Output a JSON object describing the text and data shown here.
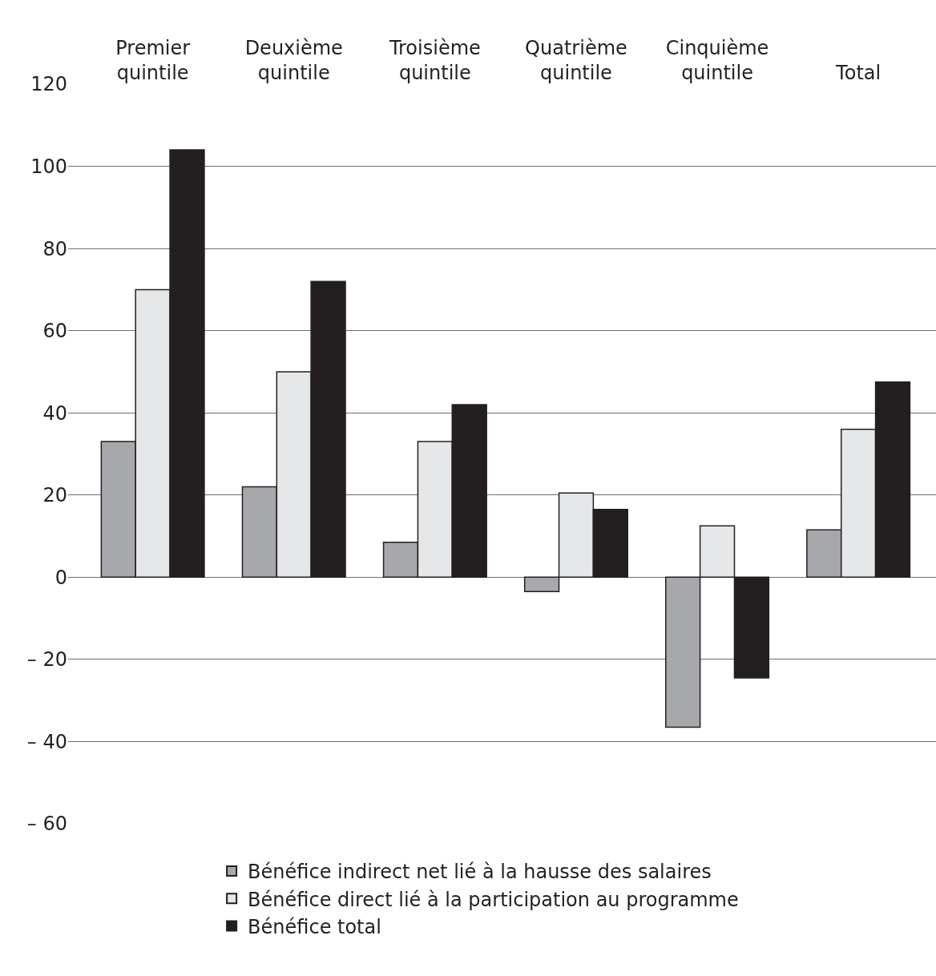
{
  "chart_data": {
    "type": "bar",
    "categories": [
      "Premier\nquintile",
      "Deuxième\nquintile",
      "Troisième\nquintile",
      "Quatrième\nquintile",
      "Cinquième\nquintile",
      "Total"
    ],
    "series": [
      {
        "name": "Bénéfice indirect net lié à la hausse des salaires",
        "color": "#a7a8ab",
        "values": [
          33,
          22,
          8.5,
          -3.5,
          -36.5,
          11.5
        ]
      },
      {
        "name": "Bénéfice direct lié à la participation au programme",
        "color": "#e6e7e8",
        "values": [
          70,
          50,
          33,
          20.5,
          12.5,
          36
        ]
      },
      {
        "name": "Bénéfice total",
        "color": "#231f20",
        "values": [
          104,
          72,
          42,
          16.5,
          -24.5,
          47.5
        ]
      }
    ],
    "ylim": [
      -60,
      120
    ],
    "yticks": [
      {
        "value": -60,
        "label": "– 60"
      },
      {
        "value": -40,
        "label": "– 40"
      },
      {
        "value": -20,
        "label": "– 20"
      },
      0,
      20,
      40,
      60,
      80,
      100,
      120
    ],
    "grid": "y",
    "legend": "bottom"
  }
}
